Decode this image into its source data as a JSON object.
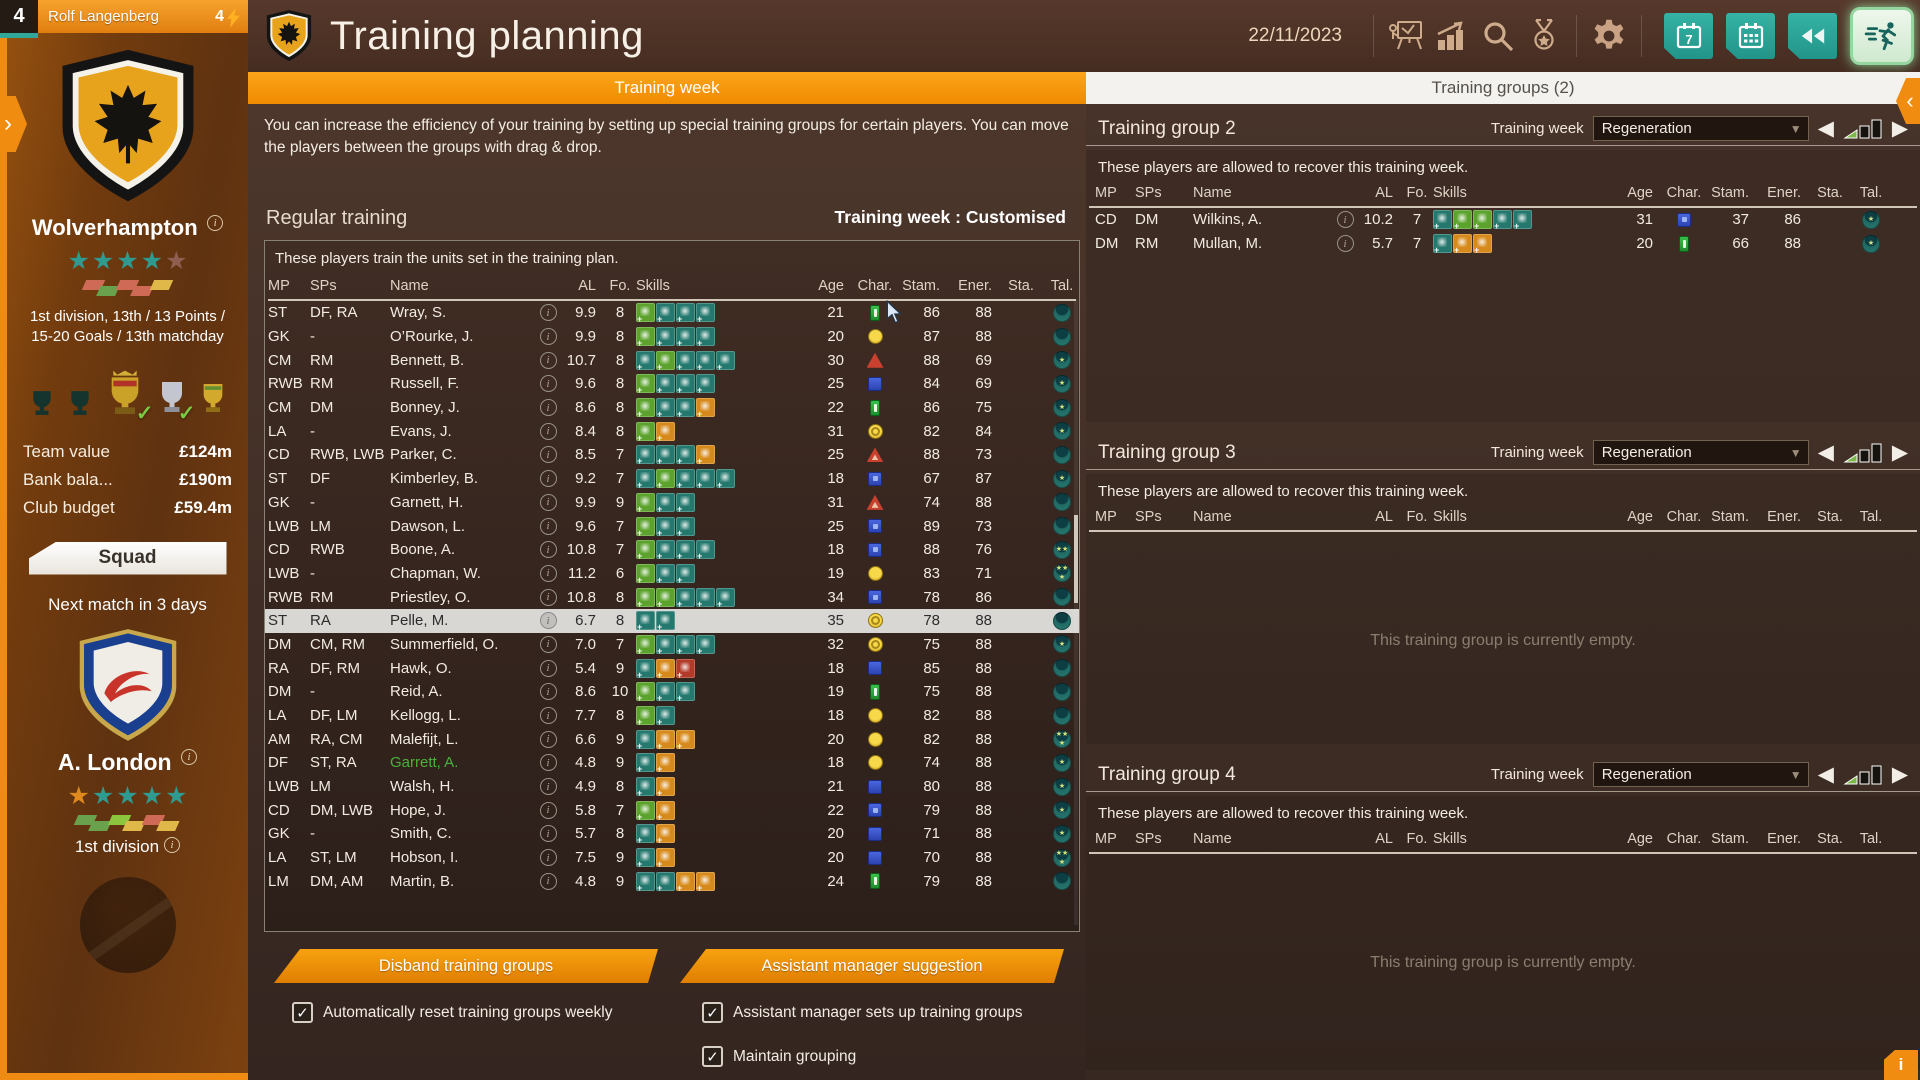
{
  "manager_bar": {
    "level": "4",
    "name": "Rolf Langenberg",
    "energy": "4"
  },
  "header": {
    "title": "Training planning",
    "date": "22/11/2023",
    "calendar_day_label": "7",
    "icons": [
      "flipchart-icon",
      "chart-icon",
      "search-icon",
      "medal-icon",
      "gear-icon"
    ],
    "buttons": [
      "calendar-day-button",
      "calendar-button",
      "rewind-button",
      "training-button"
    ]
  },
  "tabs": {
    "left": "Training week",
    "right": "Training groups (2)"
  },
  "sidebar": {
    "club": {
      "name": "Wolverhampton",
      "summary": "1st division, 13th / 13 Points / 15-20 Goals / 13th matchday",
      "stars": [
        "teal",
        "teal",
        "teal",
        "teal",
        "faded"
      ],
      "form": [
        "salmon",
        "green",
        "salmon",
        "salmon",
        "gold"
      ],
      "trophies": [
        {
          "type": "dark",
          "check": false
        },
        {
          "type": "dark",
          "check": false
        },
        {
          "type": "ornate",
          "check": true
        },
        {
          "type": "silver",
          "check": true
        },
        {
          "type": "gold",
          "check": false
        }
      ]
    },
    "finance": [
      {
        "label": "Team value",
        "value": "£124m"
      },
      {
        "label": "Bank bala...",
        "value": "£190m"
      },
      {
        "label": "Club budget",
        "value": "£59.4m"
      }
    ],
    "squad_button": "Squad",
    "next_match": "Next match in 3 days",
    "opponent": {
      "name": "A. London",
      "division": "1st division",
      "stars": [
        "orange",
        "teal",
        "teal",
        "teal",
        "teal"
      ],
      "form": [
        "green",
        "green",
        "lightgreen",
        "gold",
        "salmon",
        "gold"
      ]
    }
  },
  "main": {
    "intro": "You can increase the efficiency of your training by setting up special training groups for certain players. You can move the players between the groups with drag & drop.",
    "section_title": "Regular training",
    "week_status": "Training week : Customised",
    "note": "These players train the units set in the training plan.",
    "columns": [
      "MP",
      "SPs",
      "Name",
      "",
      "AL",
      "Fo.",
      "Skills",
      "Age",
      "Char.",
      "Stam.",
      "Ener.",
      "Sta.",
      "Tal."
    ],
    "players": [
      {
        "mp": "ST",
        "sps": "DF, RA",
        "name": "Wray, S.",
        "al": "9.9",
        "fo": "8",
        "sk": [
          "g",
          "t",
          "t",
          "t"
        ],
        "age": "21",
        "ch": "green-rect",
        "stam": "86",
        "ener": "88",
        "tal": 0
      },
      {
        "mp": "GK",
        "sps": "-",
        "name": "O’Rourke, J.",
        "al": "9.9",
        "fo": "8",
        "sk": [
          "g",
          "t",
          "t",
          "t"
        ],
        "age": "20",
        "ch": "yellow-circle",
        "stam": "87",
        "ener": "88",
        "tal": 0
      },
      {
        "mp": "CM",
        "sps": "RM",
        "name": "Bennett, B.",
        "al": "10.7",
        "fo": "8",
        "sk": [
          "t",
          "g",
          "t",
          "t",
          "t"
        ],
        "age": "30",
        "ch": "red-tri",
        "stam": "88",
        "ener": "69",
        "tal": 1
      },
      {
        "mp": "RWB",
        "sps": "RM",
        "name": "Russell, F.",
        "al": "9.6",
        "fo": "8",
        "sk": [
          "g",
          "t",
          "t",
          "t"
        ],
        "age": "25",
        "ch": "blue-sq",
        "stam": "84",
        "ener": "69",
        "tal": 1
      },
      {
        "mp": "CM",
        "sps": "DM",
        "name": "Bonney, J.",
        "al": "8.6",
        "fo": "8",
        "sk": [
          "g",
          "t",
          "t",
          "o"
        ],
        "age": "22",
        "ch": "green-rect",
        "stam": "86",
        "ener": "75",
        "tal": 1
      },
      {
        "mp": "LA",
        "sps": "-",
        "name": "Evans, J.",
        "al": "8.4",
        "fo": "8",
        "sk": [
          "g",
          "o"
        ],
        "age": "31",
        "ch": "yellow-circle-o",
        "stam": "82",
        "ener": "84",
        "tal": 1
      },
      {
        "mp": "CD",
        "sps": "RWB, LWB",
        "name": "Parker, C.",
        "al": "8.5",
        "fo": "7",
        "sk": [
          "t",
          "t",
          "t",
          "o"
        ],
        "age": "25",
        "ch": "red-tri-o",
        "stam": "88",
        "ener": "73",
        "tal": 0
      },
      {
        "mp": "ST",
        "sps": "DF",
        "name": "Kimberley, B.",
        "al": "9.2",
        "fo": "7",
        "sk": [
          "t",
          "g",
          "t",
          "t",
          "t"
        ],
        "age": "18",
        "ch": "blue-sq-o",
        "stam": "67",
        "ener": "87",
        "tal": 1
      },
      {
        "mp": "GK",
        "sps": "-",
        "name": "Garnett, H.",
        "al": "9.9",
        "fo": "9",
        "sk": [
          "g",
          "t",
          "t"
        ],
        "age": "31",
        "ch": "red-tri-o",
        "stam": "74",
        "ener": "88",
        "tal": 0
      },
      {
        "mp": "LWB",
        "sps": "LM",
        "name": "Dawson, L.",
        "al": "9.6",
        "fo": "7",
        "sk": [
          "g",
          "t",
          "t"
        ],
        "age": "25",
        "ch": "blue-sq-o",
        "stam": "89",
        "ener": "73",
        "tal": 0
      },
      {
        "mp": "CD",
        "sps": "RWB",
        "name": "Boone, A.",
        "al": "10.8",
        "fo": "7",
        "sk": [
          "g",
          "t",
          "t",
          "t"
        ],
        "age": "18",
        "ch": "blue-sq-o",
        "stam": "88",
        "ener": "76",
        "tal": 2
      },
      {
        "mp": "LWB",
        "sps": "-",
        "name": "Chapman, W.",
        "al": "11.2",
        "fo": "6",
        "sk": [
          "g",
          "t",
          "t"
        ],
        "age": "19",
        "ch": "yellow-circle",
        "stam": "83",
        "ener": "71",
        "tal": 3
      },
      {
        "mp": "RWB",
        "sps": "RM",
        "name": "Priestley, O.",
        "al": "10.8",
        "fo": "8",
        "sk": [
          "g",
          "g",
          "t",
          "t",
          "t"
        ],
        "age": "34",
        "ch": "blue-sq-o",
        "stam": "78",
        "ener": "86",
        "tal": 0
      },
      {
        "mp": "ST",
        "sps": "RA",
        "name": "Pelle, M.",
        "al": "6.7",
        "fo": "8",
        "sk": [
          "t",
          "t"
        ],
        "age": "35",
        "ch": "yellow-circle-o",
        "stam": "78",
        "ener": "88",
        "tal": 0,
        "hl": true
      },
      {
        "mp": "DM",
        "sps": "CM, RM",
        "name": "Summerfield, O.",
        "al": "7.0",
        "fo": "7",
        "sk": [
          "g",
          "t",
          "t",
          "t"
        ],
        "age": "32",
        "ch": "yellow-circle-o",
        "stam": "75",
        "ener": "88",
        "tal": 1
      },
      {
        "mp": "RA",
        "sps": "DF, RM",
        "name": "Hawk, O.",
        "al": "5.4",
        "fo": "9",
        "sk": [
          "t",
          "o",
          "r"
        ],
        "age": "18",
        "ch": "blue-sq",
        "stam": "85",
        "ener": "88",
        "tal": 0
      },
      {
        "mp": "DM",
        "sps": "-",
        "name": "Reid, A.",
        "al": "8.6",
        "fo": "10",
        "sk": [
          "g",
          "t",
          "t"
        ],
        "age": "19",
        "ch": "green-rect",
        "stam": "75",
        "ener": "88",
        "tal": 0
      },
      {
        "mp": "LA",
        "sps": "DF, LM",
        "name": "Kellogg, L.",
        "al": "7.7",
        "fo": "8",
        "sk": [
          "g",
          "t"
        ],
        "age": "18",
        "ch": "yellow-circle",
        "stam": "82",
        "ener": "88",
        "tal": 0
      },
      {
        "mp": "AM",
        "sps": "RA, CM",
        "name": "Malefijt, L.",
        "al": "6.6",
        "fo": "9",
        "sk": [
          "t",
          "o",
          "o"
        ],
        "age": "20",
        "ch": "yellow-circle",
        "stam": "82",
        "ener": "88",
        "tal": 3
      },
      {
        "mp": "DF",
        "sps": "ST, RA",
        "name": "Garrett, A.",
        "al": "4.8",
        "fo": "9",
        "sk": [
          "t",
          "o"
        ],
        "age": "18",
        "ch": "yellow-circle",
        "stam": "74",
        "ener": "88",
        "tal": 1,
        "green": true
      },
      {
        "mp": "LWB",
        "sps": "LM",
        "name": "Walsh, H.",
        "al": "4.9",
        "fo": "8",
        "sk": [
          "t",
          "o"
        ],
        "age": "21",
        "ch": "blue-sq",
        "stam": "80",
        "ener": "88",
        "tal": 1
      },
      {
        "mp": "CD",
        "sps": "DM, LWB",
        "name": "Hope, J.",
        "al": "5.8",
        "fo": "7",
        "sk": [
          "g",
          "o"
        ],
        "age": "22",
        "ch": "blue-sq-o",
        "stam": "79",
        "ener": "88",
        "tal": 1
      },
      {
        "mp": "GK",
        "sps": "-",
        "name": "Smith, C.",
        "al": "5.7",
        "fo": "8",
        "sk": [
          "t",
          "o"
        ],
        "age": "20",
        "ch": "blue-sq",
        "stam": "71",
        "ener": "88",
        "tal": 1
      },
      {
        "mp": "LA",
        "sps": "ST, LM",
        "name": "Hobson, I.",
        "al": "7.5",
        "fo": "9",
        "sk": [
          "t",
          "o"
        ],
        "age": "20",
        "ch": "blue-sq",
        "stam": "70",
        "ener": "88",
        "tal": 3
      },
      {
        "mp": "LM",
        "sps": "DM, AM",
        "name": "Martin, B.",
        "al": "4.8",
        "fo": "9",
        "sk": [
          "t",
          "t",
          "o",
          "o"
        ],
        "age": "24",
        "ch": "green-rect",
        "stam": "79",
        "ener": "88",
        "tal": 0
      }
    ]
  },
  "footer": {
    "buttons": [
      {
        "label": "Disband training groups"
      },
      {
        "label": "Assistant manager suggestion"
      }
    ],
    "checkboxes": [
      {
        "label": "Automatically reset training groups weekly",
        "checked": true
      },
      {
        "label": "Assistant manager sets up training groups",
        "checked": true
      },
      {
        "label": "Maintain grouping",
        "checked": true
      }
    ]
  },
  "groups": {
    "note": "These players are allowed to recover this training week.",
    "week_label": "Training week",
    "week_value": "Regeneration",
    "empty_text": "This training group is currently empty.",
    "items": [
      {
        "title": "Training group 2",
        "players": [
          {
            "mp": "CD",
            "sps": "DM",
            "name": "Wilkins, A.",
            "al": "10.2",
            "fo": "7",
            "sk": [
              "t",
              "g",
              "g",
              "t",
              "t"
            ],
            "age": "31",
            "ch": "blue-sq-o",
            "stam": "37",
            "ener": "86",
            "tal": 1
          },
          {
            "mp": "DM",
            "sps": "RM",
            "name": "Mullan, M.",
            "al": "5.7",
            "fo": "7",
            "sk": [
              "t",
              "o",
              "o"
            ],
            "age": "20",
            "ch": "green-rect",
            "stam": "66",
            "ener": "88",
            "tal": 1
          }
        ]
      },
      {
        "title": "Training group 3",
        "players": []
      },
      {
        "title": "Training group 4",
        "players": []
      }
    ]
  },
  "info_badge": "i",
  "colors": {
    "accent_orange": "#f08c10",
    "teal_button": "#2aa99b",
    "tab_orange": "#f39200",
    "highlight_row": "#d9d7d3",
    "star_teal": "#2f9a8f"
  }
}
